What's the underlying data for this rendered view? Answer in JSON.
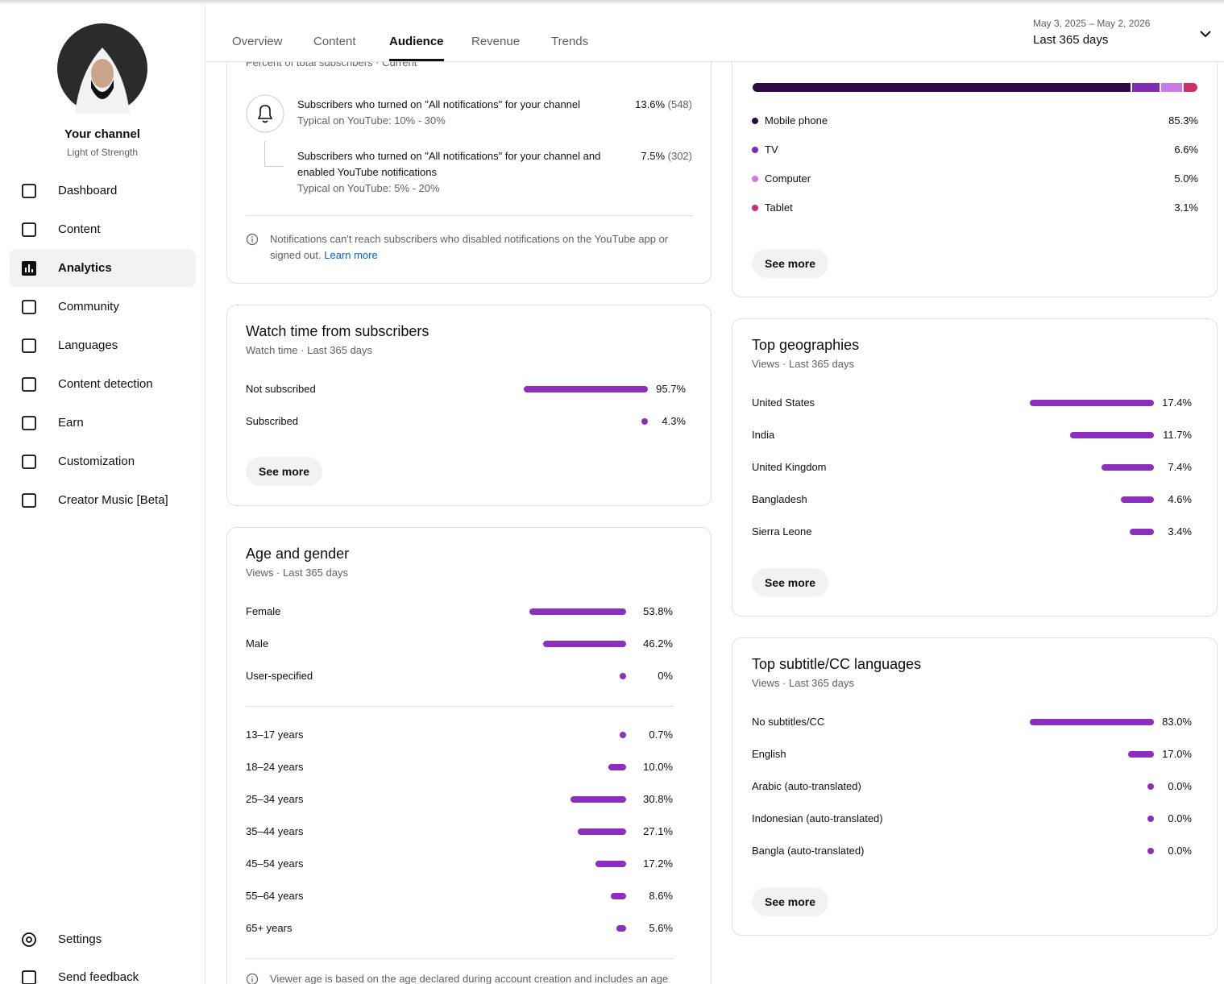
{
  "sidebar": {
    "channel_title": "Your channel",
    "channel_name": "Light of Strength",
    "nav": [
      "Dashboard",
      "Content",
      "Analytics",
      "Community",
      "Languages",
      "Content detection",
      "Earn",
      "Customization",
      "Creator Music [Beta]"
    ],
    "active_index": 2,
    "footer_nav": [
      "Settings",
      "Send feedback"
    ]
  },
  "header": {
    "tabs": [
      "Overview",
      "Content",
      "Audience",
      "Revenue",
      "Trends"
    ],
    "active_tab_index": 2,
    "date_range": "May 3, 2025 – May 2, 2026",
    "period": "Last 365 days"
  },
  "notifications": {
    "subtitle": "Percent of total subscribers · Current",
    "rows": [
      {
        "text": "Subscribers who turned on \"All notifications\" for your channel",
        "typical": "Typical on YouTube: 10% - 30%",
        "value": "13.6%",
        "count": "(548)"
      },
      {
        "text": "Subscribers who turned on \"All notifications\" for your channel and enabled YouTube notifications",
        "typical": "Typical on YouTube: 5% - 20%",
        "value": "7.5%",
        "count": "(302)"
      }
    ],
    "note": "Notifications can't reach subscribers who disabled notifications on the YouTube app or signed out.",
    "link": "Learn more"
  },
  "watch_time": {
    "title": "Watch time from subscribers",
    "subtitle": "Watch time · Last 365 days",
    "rows": [
      {
        "label": "Not subscribed",
        "value": 95.7,
        "value_label": "95.7%"
      },
      {
        "label": "Subscribed",
        "value": 4.3,
        "value_label": "4.3%"
      }
    ],
    "button": "See more"
  },
  "age_gender": {
    "title": "Age and gender",
    "subtitle": "Views · Last 365 days",
    "gender_rows": [
      {
        "label": "Female",
        "value": 53.8,
        "value_label": "53.8%"
      },
      {
        "label": "Male",
        "value": 46.2,
        "value_label": "46.2%"
      },
      {
        "label": "User-specified",
        "value": 0,
        "value_label": "0%"
      }
    ],
    "age_rows": [
      {
        "label": "13–17 years",
        "value": 0.7,
        "value_label": "0.7%"
      },
      {
        "label": "18–24 years",
        "value": 10.0,
        "value_label": "10.0%"
      },
      {
        "label": "25–34 years",
        "value": 30.8,
        "value_label": "30.8%"
      },
      {
        "label": "35–44 years",
        "value": 27.1,
        "value_label": "27.1%"
      },
      {
        "label": "45–54 years",
        "value": 17.2,
        "value_label": "17.2%"
      },
      {
        "label": "55–64 years",
        "value": 8.6,
        "value_label": "8.6%"
      },
      {
        "label": "65+ years",
        "value": 5.6,
        "value_label": "5.6%"
      }
    ],
    "note": "Viewer age is based on the age declared during account creation and includes an age"
  },
  "devices": {
    "segments": [
      {
        "name": "Mobile phone",
        "value": 85.3,
        "value_label": "85.3%",
        "color": "#2b0a45"
      },
      {
        "name": "TV",
        "value": 6.6,
        "value_label": "6.6%",
        "color": "#7e2cb3"
      },
      {
        "name": "Computer",
        "value": 5.0,
        "value_label": "5.0%",
        "color": "#c77ce6"
      },
      {
        "name": "Tablet",
        "value": 3.1,
        "value_label": "3.1%",
        "color": "#cf2e6e"
      }
    ],
    "button": "See more"
  },
  "geographies": {
    "title": "Top geographies",
    "subtitle": "Views · Last 365 days",
    "rows": [
      {
        "label": "United States",
        "value": 17.4,
        "value_label": "17.4%"
      },
      {
        "label": "India",
        "value": 11.7,
        "value_label": "11.7%"
      },
      {
        "label": "United Kingdom",
        "value": 7.4,
        "value_label": "7.4%"
      },
      {
        "label": "Bangladesh",
        "value": 4.6,
        "value_label": "4.6%"
      },
      {
        "label": "Sierra Leone",
        "value": 3.4,
        "value_label": "3.4%"
      }
    ],
    "button": "See more"
  },
  "subtitles": {
    "title": "Top subtitle/CC languages",
    "subtitle": "Views · Last 365 days",
    "rows": [
      {
        "label": "No subtitles/CC",
        "value": 83.0,
        "value_label": "83.0%"
      },
      {
        "label": "English",
        "value": 17.0,
        "value_label": "17.0%"
      },
      {
        "label": "Arabic (auto-translated)",
        "value": 0.0,
        "value_label": "0.0%"
      },
      {
        "label": "Indonesian (auto-translated)",
        "value": 0.0,
        "value_label": "0.0%"
      },
      {
        "label": "Bangla (auto-translated)",
        "value": 0.0,
        "value_label": "0.0%"
      }
    ],
    "button": "See more"
  },
  "bar_color": "#8c2fbf"
}
